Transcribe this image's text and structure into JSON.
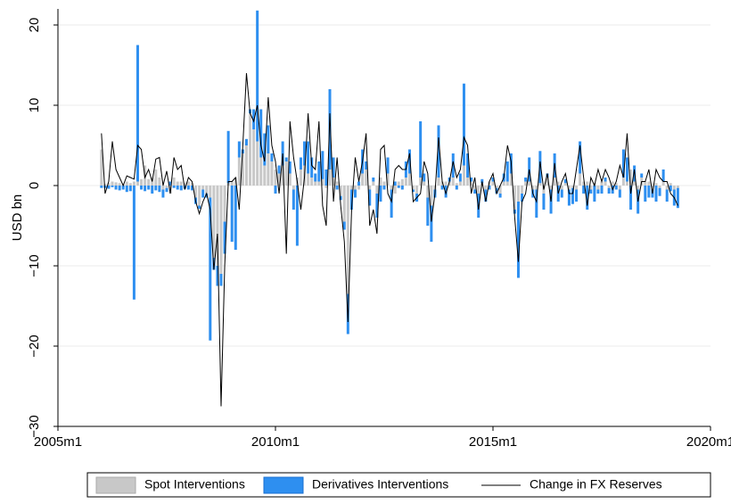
{
  "chart_data": {
    "type": "bar-line",
    "y_label": "USD bn",
    "xlim": [
      540,
      720
    ],
    "xticks": [
      {
        "value": 540,
        "label": "2005m1"
      },
      {
        "value": 600,
        "label": "2010m1"
      },
      {
        "value": 660,
        "label": "2015m1"
      },
      {
        "value": 720,
        "label": "2020m1"
      }
    ],
    "ylim": [
      -30,
      22
    ],
    "yticks": [
      {
        "value": -30,
        "label": "−30"
      },
      {
        "value": -20,
        "label": "−20"
      },
      {
        "value": -10,
        "label": "−10"
      },
      0,
      10,
      20
    ],
    "grid": true,
    "x": [
      552,
      553,
      554,
      555,
      556,
      557,
      558,
      559,
      560,
      561,
      562,
      563,
      564,
      565,
      566,
      567,
      568,
      569,
      570,
      571,
      572,
      573,
      574,
      575,
      576,
      577,
      578,
      579,
      580,
      581,
      582,
      583,
      584,
      585,
      586,
      587,
      588,
      589,
      590,
      591,
      592,
      593,
      594,
      595,
      596,
      597,
      598,
      599,
      600,
      601,
      602,
      603,
      604,
      605,
      606,
      607,
      608,
      609,
      610,
      611,
      612,
      613,
      614,
      615,
      616,
      617,
      618,
      619,
      620,
      621,
      622,
      623,
      624,
      625,
      626,
      627,
      628,
      629,
      630,
      631,
      632,
      633,
      634,
      635,
      636,
      637,
      638,
      639,
      640,
      641,
      642,
      643,
      644,
      645,
      646,
      647,
      648,
      649,
      650,
      651,
      652,
      653,
      654,
      655,
      656,
      657,
      658,
      659,
      660,
      661,
      662,
      663,
      664,
      665,
      666,
      667,
      668,
      669,
      670,
      671,
      672,
      673,
      674,
      675,
      676,
      677,
      678,
      679,
      680,
      681,
      682,
      683,
      684,
      685,
      686,
      687,
      688,
      689,
      690,
      691,
      692,
      693,
      694,
      695,
      696,
      697,
      698,
      699,
      700,
      701,
      702,
      703,
      704,
      705,
      706,
      707,
      708,
      709,
      710,
      711
    ],
    "series": [
      {
        "name": "Spot Interventions",
        "color": "#c8c8c8",
        "kind": "bar",
        "values": [
          4.5,
          0.2,
          0.3,
          0.5,
          0.4,
          0.3,
          0.2,
          0.5,
          0.3,
          0.5,
          0.5,
          0.8,
          2.5,
          0.8,
          1,
          2,
          1,
          -0.5,
          -0.3,
          -1,
          1,
          0.5,
          0.5,
          0.3,
          0.5,
          0.3,
          -1.5,
          -2.5,
          -0.5,
          -1,
          -1.5,
          -9,
          -10,
          -11,
          -4.5,
          0.3,
          0.5,
          1,
          3.5,
          4,
          5,
          9,
          7,
          5.5,
          3.5,
          2.5,
          4,
          3,
          2,
          1.5,
          2.5,
          3,
          1.5,
          -0.5,
          1,
          2,
          2.5,
          1.5,
          1,
          0.5,
          0.5,
          0.8,
          -0.3,
          2,
          1,
          0.5,
          -1.3,
          -4.5,
          -13.5,
          -0.5,
          -0.5,
          -0.5,
          1.5,
          2,
          -0.5,
          0.5,
          -1,
          1,
          0.5,
          1.5,
          -0.5,
          -1,
          0.5,
          0.8,
          1,
          1.5,
          -0.5,
          -1,
          1,
          0.5,
          -1.5,
          -2.5,
          -0.5,
          1,
          0.5,
          0.5,
          0.5,
          1,
          0.3,
          0.5,
          2.5,
          1,
          0.5,
          -0.5,
          -1,
          0.3,
          -0.5,
          0.5,
          0.5,
          -0.3,
          -1,
          0.5,
          0.5,
          1.5,
          -3,
          -2,
          -1,
          0.5,
          0.5,
          -0.5,
          -0.5,
          0.3,
          -1,
          1,
          -0.5,
          1,
          0.5,
          -0.5,
          0.3,
          -0.5,
          -0.3,
          -0.5,
          1.5,
          0.5,
          0.5,
          -0.5,
          0.3,
          -0.5,
          0.5,
          0.5,
          -0.3,
          0.5,
          0.3,
          -0.5,
          1,
          0.5,
          2,
          0.5,
          -0.5,
          1,
          0.5,
          0.5,
          -0.5,
          0.3,
          -0.3,
          0.5,
          -0.5,
          0.3,
          -0.5,
          -0.3
        ]
      },
      {
        "name": "Derivatives Interventions",
        "color": "#2e8ff0",
        "kind": "bar",
        "values": [
          -0.3,
          -0.3,
          -0.4,
          -0.2,
          -0.5,
          -0.6,
          -0.5,
          -0.8,
          -0.7,
          -14.2,
          17,
          -0.5,
          -0.7,
          -0.5,
          -1,
          -0.6,
          -0.8,
          -1,
          -0.5,
          0.5,
          -0.3,
          -0.5,
          -0.6,
          -0.4,
          -0.5,
          -0.6,
          -0.8,
          -0.4,
          -1,
          -0.5,
          -17.8,
          -1.5,
          -2.5,
          -1.5,
          -4,
          6.5,
          -7,
          -8,
          2,
          0.5,
          0.8,
          0.5,
          2.5,
          16.3,
          6,
          4,
          3.5,
          1,
          -1,
          1,
          3,
          0.5,
          1.5,
          -2.5,
          -7.5,
          1.5,
          3,
          4,
          2.5,
          1,
          2.5,
          3.5,
          2,
          10,
          2.5,
          -0.5,
          -0.5,
          -1,
          -5,
          -2.5,
          -1,
          0.5,
          3,
          1,
          -2,
          0.5,
          -3,
          -2,
          -0.5,
          2,
          -3.5,
          0.5,
          -0.3,
          -0.5,
          2,
          3,
          -0.3,
          -1,
          7,
          1,
          -3.5,
          -4.5,
          -1,
          6.5,
          -0.5,
          -1.5,
          0.5,
          3,
          -0.5,
          1,
          10.2,
          3,
          0.5,
          -0.5,
          -3,
          0.5,
          -1.5,
          -0.5,
          0.5,
          -0.7,
          -0.5,
          1,
          2.5,
          2.5,
          -0.5,
          -9.5,
          -1,
          0.5,
          3,
          -1,
          -3.5,
          4,
          -2,
          0.5,
          -3,
          3,
          -2,
          -1,
          0.5,
          -2,
          -2,
          -1.5,
          4,
          -1,
          -3,
          -0.5,
          -2,
          -0.5,
          -1,
          0.5,
          -0.7,
          -1,
          -0.5,
          -1,
          3.5,
          3,
          -3,
          2,
          -3,
          0.5,
          -2,
          -1.5,
          -1,
          -2,
          -1,
          1.5,
          -1.5,
          -0.7,
          -2,
          -2.5
        ]
      },
      {
        "name": "Change in FX Reserves",
        "color": "#000000",
        "kind": "line",
        "values": [
          6.5,
          -1,
          0.5,
          5.5,
          2,
          1,
          0,
          1.2,
          1,
          0.8,
          5,
          4.5,
          1,
          2,
          0.5,
          3.3,
          3.5,
          0,
          1.8,
          -1,
          3.5,
          2,
          2.5,
          -0.5,
          1,
          0.5,
          -2,
          -3.5,
          -2,
          -1,
          -3,
          -10.5,
          -6,
          -27.5,
          -10,
          0.5,
          0.5,
          1,
          -3,
          5,
          14,
          9,
          8,
          10,
          5,
          3,
          11,
          5,
          3,
          -1,
          4,
          -8.5,
          8,
          3.5,
          0.5,
          -3,
          1,
          9,
          2.5,
          2,
          8,
          -2.5,
          -5,
          9,
          -2,
          3.5,
          -2.5,
          -7,
          -17,
          -3,
          3.5,
          0.5,
          3,
          6.5,
          -5,
          -3,
          -6,
          4.5,
          5,
          -1,
          -2,
          2,
          2.5,
          2,
          2,
          4,
          -2,
          -1.5,
          -1,
          3,
          1.5,
          -4.5,
          -1,
          6,
          0.5,
          -1,
          0.5,
          3,
          1,
          2,
          6,
          5,
          -1,
          1,
          -3,
          0.5,
          -2,
          0.5,
          1.5,
          -1,
          0,
          1,
          5,
          3,
          -4,
          -9.5,
          -2,
          -1,
          2,
          -1,
          -2,
          3,
          -0.5,
          1.5,
          -2,
          2.8,
          -1,
          0.5,
          1.5,
          -1,
          -1,
          2,
          5,
          1,
          -2.5,
          1,
          0,
          2,
          0.5,
          2,
          1,
          -0.5,
          0.5,
          2.5,
          1,
          6.5,
          -1,
          2,
          -2,
          0.5,
          0.5,
          2,
          -1,
          2,
          1,
          0.5,
          0.5,
          -1,
          -1.5,
          -2.5
        ]
      }
    ]
  }
}
